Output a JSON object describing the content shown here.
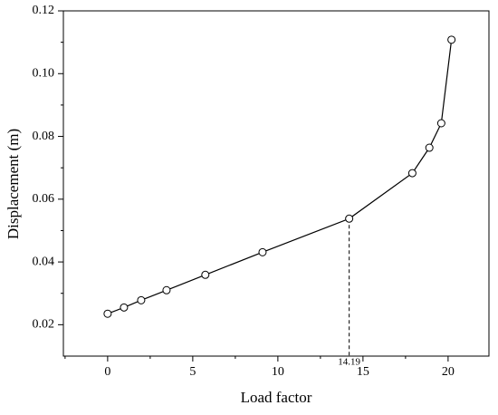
{
  "chart_data": {
    "type": "line",
    "x_label": "Load factor",
    "y_label": "Displacement (m)",
    "series": [
      {
        "color": "#000000",
        "x": [
          0,
          0.96,
          1.97,
          3.46,
          5.74,
          9.1,
          14.19,
          17.9,
          18.9,
          19.6,
          20.2
        ],
        "values": [
          0.0235,
          0.0255,
          0.0278,
          0.031,
          0.0359,
          0.0431,
          0.0538,
          0.0683,
          0.0764,
          0.0842,
          0.1108
        ]
      }
    ],
    "xlim": [
      -2.6,
      22.4
    ],
    "xticks": [
      0,
      5,
      10,
      15,
      20
    ],
    "ylim": [
      0.01,
      0.12
    ],
    "yticks": [
      0.02,
      0.04,
      0.06,
      0.08,
      {
        "value": 0.1,
        "label": "0.10"
      },
      0.12
    ],
    "annotation": {
      "label": "14.19",
      "x": 14.19
    }
  }
}
